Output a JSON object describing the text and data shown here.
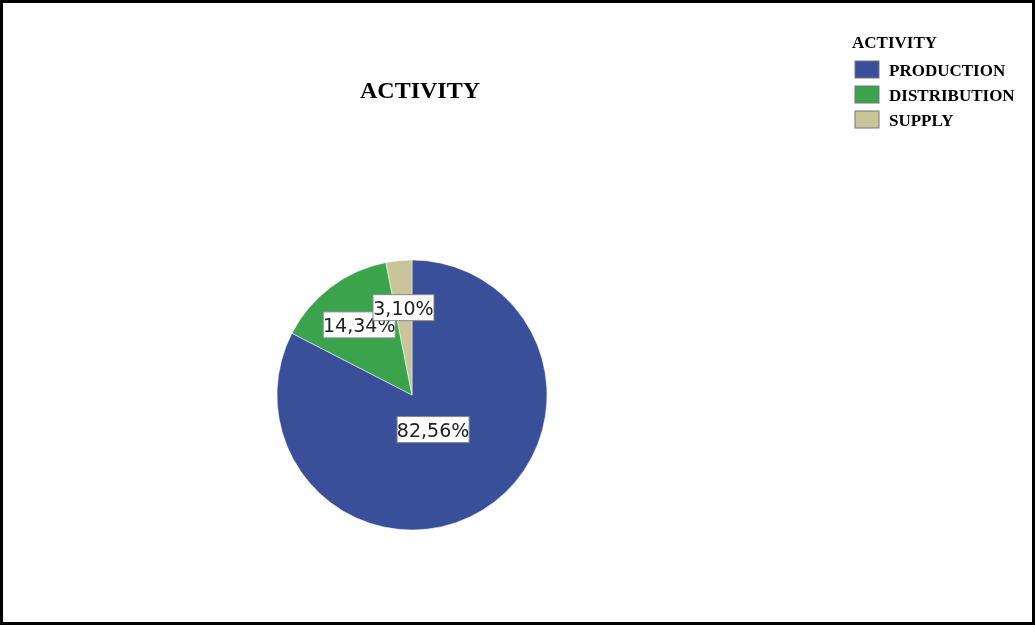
{
  "chart_data": {
    "type": "pie",
    "title": "ACTIVITY",
    "legend_title": "ACTIVITY",
    "legend": "top right",
    "categories": [
      "PRODUCTION",
      "DISTRIBUTION",
      "SUPPLY"
    ],
    "values": [
      82.56,
      14.34,
      3.1
    ],
    "value_labels": [
      "82,56%",
      "14,34%",
      "3,10%"
    ],
    "colors": [
      "#3a4f9a",
      "#3ba34b",
      "#c9c49a"
    ]
  }
}
